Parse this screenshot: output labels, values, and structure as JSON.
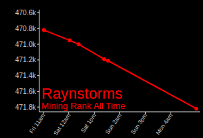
{
  "chart_data": {
    "type": "line",
    "title": "Raynstorms",
    "subtitle": "Mining Rank All Time",
    "x": [
      0.3,
      13.4,
      18,
      31,
      33,
      78
    ],
    "values": [
      470820,
      470950,
      471000,
      471190,
      471210,
      471820
    ],
    "color": "#ff0000",
    "marker": "circle",
    "grid": false,
    "xlim": [
      -2,
      80
    ],
    "xticks": [
      {
        "value": 0,
        "label": "Fri 11am"
      },
      {
        "value": 13,
        "label": "Sat 12am"
      },
      {
        "value": 26,
        "label": "Sat 1pm"
      },
      {
        "value": 39,
        "label": "Sun 2am"
      },
      {
        "value": 52,
        "label": "Sun 3pm"
      },
      {
        "value": 65,
        "label": "Mon 4am"
      }
    ],
    "ylim": [
      471860,
      470560
    ],
    "yticks": [
      {
        "value": 470600,
        "label": "470.6k"
      },
      {
        "value": 470800,
        "label": "470.8k"
      },
      {
        "value": 471000,
        "label": "471.0k"
      },
      {
        "value": 471200,
        "label": "471.2k"
      },
      {
        "value": 471400,
        "label": "471.4k"
      },
      {
        "value": 471600,
        "label": "471.6k"
      },
      {
        "value": 471800,
        "label": "471.8k"
      }
    ]
  }
}
